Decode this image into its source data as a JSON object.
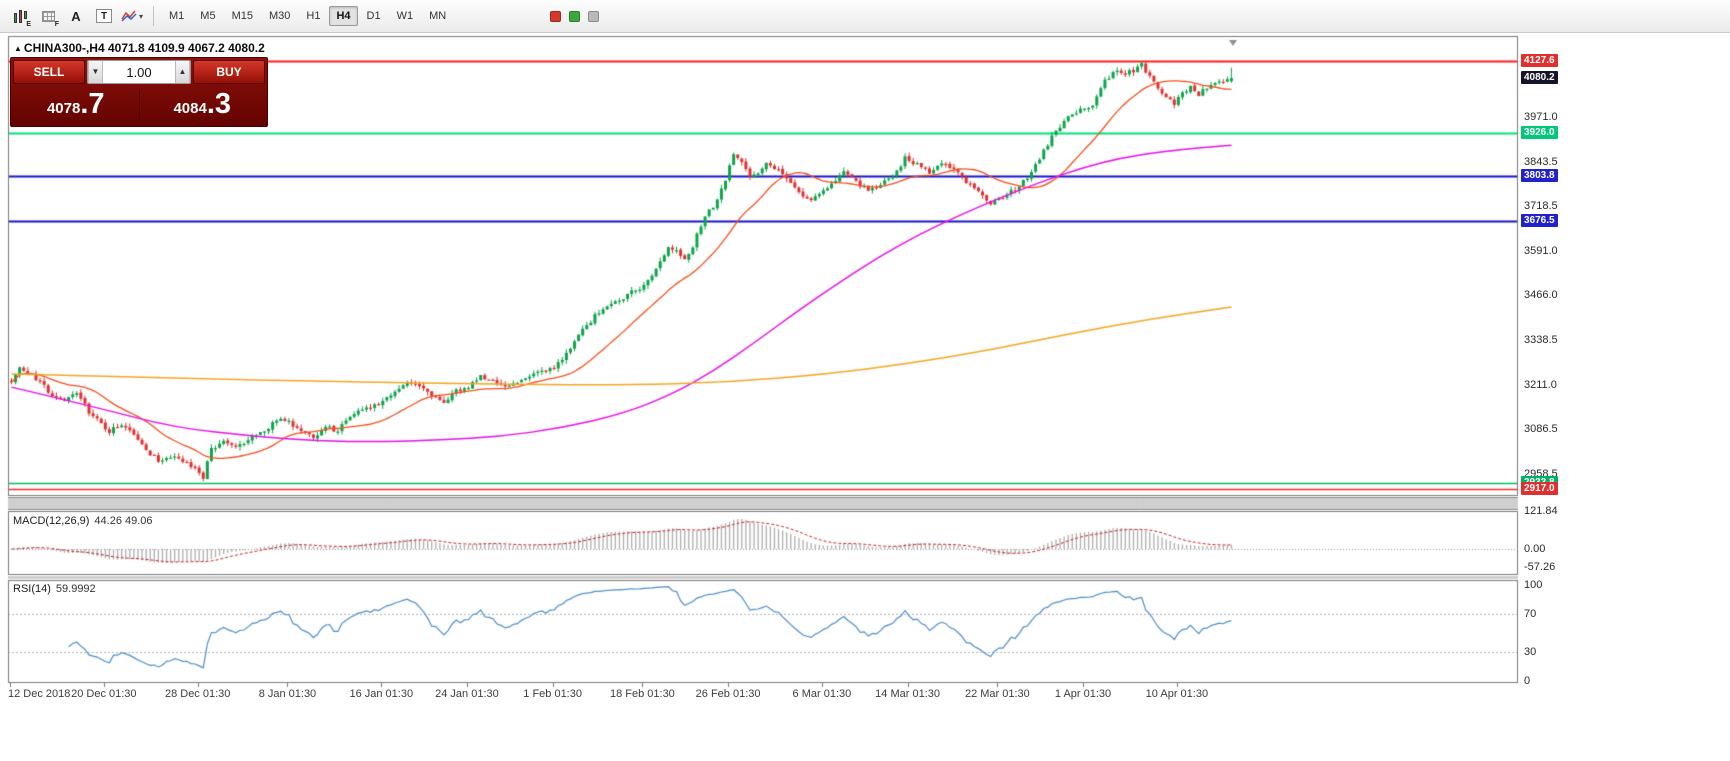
{
  "toolbar": {
    "icon_badges": {
      "e": "E",
      "f": "F"
    },
    "text_tool_label": "A",
    "textbox_tool_label": "T",
    "timeframes": [
      "M1",
      "M5",
      "M15",
      "M30",
      "H1",
      "H4",
      "D1",
      "W1",
      "MN"
    ],
    "active_timeframe": "H4"
  },
  "chart": {
    "marker": "▲",
    "symbol_header": "CHINA300-,H4",
    "ohlc_text": "4071.8 4109.9 4067.2 4080.2",
    "trade_panel": {
      "sell_label": "SELL",
      "buy_label": "BUY",
      "volume": "1.00",
      "sell_price_small": "4078",
      "sell_price_big": ".7",
      "buy_price_small": "4084",
      "buy_price_big": ".3"
    },
    "price_axis": {
      "ticks": [
        3971.0,
        3843.5,
        3718.5,
        3591.0,
        3466.0,
        3338.5,
        3211.0,
        3086.5,
        2958.5
      ],
      "tags": [
        {
          "text": "4127.6",
          "price": 4127.6,
          "bg": "#e02f2f",
          "fg": "#ffffff"
        },
        {
          "text": "4080.2",
          "price": 4080.2,
          "bg": "#15152a",
          "fg": "#ffffff"
        },
        {
          "text": "3926.0",
          "price": 3926.0,
          "bg": "#00c878",
          "fg": "#ffffff"
        },
        {
          "text": "3803.8",
          "price": 3803.8,
          "bg": "#2222cc",
          "fg": "#ffffff"
        },
        {
          "text": "3676.5",
          "price": 3676.5,
          "bg": "#2222cc",
          "fg": "#ffffff"
        },
        {
          "text": "2933.8",
          "price": 2933.8,
          "bg": "#00b064",
          "fg": "#ffffff"
        },
        {
          "text": "2917.0",
          "price": 2917.0,
          "bg": "#e02f2f",
          "fg": "#ffffff"
        }
      ]
    }
  },
  "macd_panel": {
    "label": "MACD(12,26,9)",
    "values": "44.26 49.06",
    "axis": [
      "121.84",
      "0.00",
      "-57.26"
    ],
    "axis_values": [
      121.84,
      0,
      -57.26
    ]
  },
  "rsi_panel": {
    "label": "RSI(14)",
    "value": "59.9992",
    "axis": [
      "100",
      "70",
      "30",
      "0"
    ],
    "axis_values": [
      100,
      70,
      30,
      0
    ],
    "level_lines": [
      70,
      30
    ]
  },
  "chart_data": {
    "type": "candlestick",
    "symbol": "CHINA300-",
    "timeframe": "H4",
    "current_bar": {
      "open": 4071.8,
      "high": 4109.9,
      "low": 4067.2,
      "close": 4080.2
    },
    "ylim": [
      2899,
      4175
    ],
    "bar_count": 300,
    "seed": 7,
    "candle_colors": {
      "up": "#0fa44a",
      "down": "#e33030"
    },
    "close_anchors": [
      [
        0,
        3225
      ],
      [
        2,
        3258
      ],
      [
        5,
        3238
      ],
      [
        8,
        3205
      ],
      [
        12,
        3168
      ],
      [
        16,
        3182
      ],
      [
        20,
        3122
      ],
      [
        24,
        3082
      ],
      [
        28,
        3092
      ],
      [
        32,
        3042
      ],
      [
        36,
        2995
      ],
      [
        40,
        3012
      ],
      [
        44,
        2978
      ],
      [
        47,
        2950
      ],
      [
        49,
        3030
      ],
      [
        52,
        3046
      ],
      [
        55,
        3036
      ],
      [
        58,
        3056
      ],
      [
        62,
        3076
      ],
      [
        65,
        3116
      ],
      [
        68,
        3106
      ],
      [
        71,
        3086
      ],
      [
        74,
        3066
      ],
      [
        77,
        3092
      ],
      [
        80,
        3082
      ],
      [
        83,
        3122
      ],
      [
        86,
        3142
      ],
      [
        89,
        3156
      ],
      [
        91,
        3166
      ],
      [
        94,
        3196
      ],
      [
        97,
        3216
      ],
      [
        100,
        3206
      ],
      [
        103,
        3182
      ],
      [
        106,
        3166
      ],
      [
        109,
        3192
      ],
      [
        112,
        3206
      ],
      [
        115,
        3236
      ],
      [
        118,
        3222
      ],
      [
        121,
        3202
      ],
      [
        124,
        3216
      ],
      [
        127,
        3236
      ],
      [
        130,
        3246
      ],
      [
        133,
        3256
      ],
      [
        136,
        3302
      ],
      [
        139,
        3352
      ],
      [
        142,
        3392
      ],
      [
        145,
        3432
      ],
      [
        148,
        3446
      ],
      [
        151,
        3466
      ],
      [
        154,
        3486
      ],
      [
        157,
        3516
      ],
      [
        159,
        3556
      ],
      [
        161,
        3602
      ],
      [
        163,
        3586
      ],
      [
        165,
        3562
      ],
      [
        167,
        3606
      ],
      [
        169,
        3662
      ],
      [
        171,
        3702
      ],
      [
        173,
        3732
      ],
      [
        175,
        3792
      ],
      [
        177,
        3862
      ],
      [
        179,
        3842
      ],
      [
        181,
        3802
      ],
      [
        183,
        3816
      ],
      [
        185,
        3846
      ],
      [
        187,
        3826
      ],
      [
        189,
        3806
      ],
      [
        192,
        3766
      ],
      [
        195,
        3736
      ],
      [
        198,
        3746
      ],
      [
        201,
        3786
      ],
      [
        204,
        3812
      ],
      [
        207,
        3792
      ],
      [
        210,
        3756
      ],
      [
        213,
        3776
      ],
      [
        216,
        3802
      ],
      [
        219,
        3852
      ],
      [
        222,
        3836
      ],
      [
        225,
        3816
      ],
      [
        228,
        3842
      ],
      [
        231,
        3822
      ],
      [
        234,
        3786
      ],
      [
        237,
        3756
      ],
      [
        240,
        3726
      ],
      [
        243,
        3742
      ],
      [
        246,
        3766
      ],
      [
        249,
        3796
      ],
      [
        252,
        3852
      ],
      [
        255,
        3916
      ],
      [
        258,
        3956
      ],
      [
        261,
        3986
      ],
      [
        263,
        3992
      ],
      [
        265,
        4006
      ],
      [
        267,
        4056
      ],
      [
        269,
        4086
      ],
      [
        271,
        4106
      ],
      [
        273,
        4092
      ],
      [
        275,
        4102
      ],
      [
        277,
        4116
      ],
      [
        279,
        4086
      ],
      [
        281,
        4056
      ],
      [
        283,
        4026
      ],
      [
        285,
        4006
      ],
      [
        287,
        4036
      ],
      [
        289,
        4062
      ],
      [
        291,
        4036
      ],
      [
        293,
        4056
      ],
      [
        295,
        4068
      ],
      [
        297,
        4076
      ],
      [
        299,
        4080.2
      ]
    ],
    "moving_averages": [
      {
        "name": "fast",
        "color": "#f4511e",
        "period": 20,
        "source": "sma_of_close"
      },
      {
        "name": "mid",
        "color": "#e810e8",
        "path": [
          [
            0,
            3205
          ],
          [
            20,
            3150
          ],
          [
            40,
            3090
          ],
          [
            60,
            3065
          ],
          [
            75,
            3052
          ],
          [
            90,
            3050
          ],
          [
            105,
            3055
          ],
          [
            120,
            3065
          ],
          [
            135,
            3090
          ],
          [
            150,
            3130
          ],
          [
            162,
            3185
          ],
          [
            172,
            3250
          ],
          [
            182,
            3330
          ],
          [
            192,
            3415
          ],
          [
            202,
            3495
          ],
          [
            212,
            3570
          ],
          [
            222,
            3635
          ],
          [
            232,
            3690
          ],
          [
            242,
            3740
          ],
          [
            252,
            3785
          ],
          [
            262,
            3825
          ],
          [
            272,
            3855
          ],
          [
            282,
            3872
          ],
          [
            290,
            3882
          ],
          [
            299,
            3890
          ]
        ]
      },
      {
        "name": "slow",
        "color": "#f5a623",
        "path": [
          [
            0,
            3242
          ],
          [
            40,
            3230
          ],
          [
            80,
            3220
          ],
          [
            120,
            3213
          ],
          [
            150,
            3211
          ],
          [
            175,
            3218
          ],
          [
            200,
            3242
          ],
          [
            220,
            3272
          ],
          [
            240,
            3310
          ],
          [
            260,
            3358
          ],
          [
            280,
            3400
          ],
          [
            299,
            3432
          ]
        ]
      }
    ],
    "horizontal_levels": [
      {
        "price": 4127.6,
        "color": "#ff1a1a",
        "width": 2
      },
      {
        "price": 3926.0,
        "color": "#00e27d",
        "width": 2
      },
      {
        "price": 3803.8,
        "color": "#1515cc",
        "width": 2
      },
      {
        "price": 3676.5,
        "color": "#1515cc",
        "width": 2
      },
      {
        "price": 2933.8,
        "color": "#00c060",
        "width": 1.5
      },
      {
        "price": 2917.0,
        "color": "#ff2a2a",
        "width": 1.5
      }
    ],
    "macd": {
      "fast": 12,
      "slow": 26,
      "signal": 9,
      "hist_color": "#aeaeae",
      "signal_color": "#cc2222",
      "max": 121.84,
      "min": -57.26
    },
    "rsi": {
      "period": 14,
      "color": "#4d8fce"
    },
    "time_labels": [
      {
        "text": "12 Dec 2018",
        "bar": 0
      },
      {
        "text": "20 Dec 01:30",
        "bar": 23
      },
      {
        "text": "28 Dec 01:30",
        "bar": 46
      },
      {
        "text": "8 Jan 01:30",
        "bar": 68
      },
      {
        "text": "16 Jan 01:30",
        "bar": 91
      },
      {
        "text": "24 Jan 01:30",
        "bar": 112
      },
      {
        "text": "1 Feb 01:30",
        "bar": 133
      },
      {
        "text": "18 Feb 01:30",
        "bar": 155
      },
      {
        "text": "26 Feb 01:30",
        "bar": 176
      },
      {
        "text": "6 Mar 01:30",
        "bar": 199
      },
      {
        "text": "14 Mar 01:30",
        "bar": 220
      },
      {
        "text": "22 Mar 01:30",
        "bar": 242
      },
      {
        "text": "1 Apr 01:30",
        "bar": 263
      },
      {
        "text": "10 Apr 01:30",
        "bar": 286
      }
    ]
  }
}
